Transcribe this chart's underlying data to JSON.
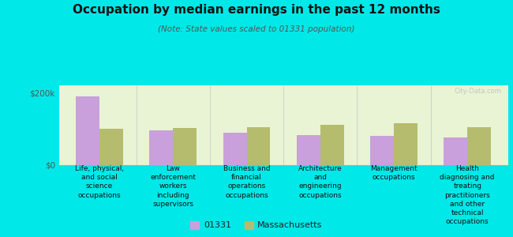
{
  "title": "Occupation by median earnings in the past 12 months",
  "subtitle": "(Note: State values scaled to 01331 population)",
  "categories": [
    "Life, physical,\nand social\nscience\noccupations",
    "Law\nenforcement\nworkers\nincluding\nsupervisors",
    "Business and\nfinancial\noperations\noccupations",
    "Architecture\nand\nengineering\noccupations",
    "Management\noccupations",
    "Health\ndiagnosing and\ntreating\npractitioners\nand other\ntechnical\noccupations"
  ],
  "values_01331": [
    190000,
    95000,
    88000,
    82000,
    80000,
    76000
  ],
  "values_mass": [
    100000,
    102000,
    103000,
    110000,
    115000,
    105000
  ],
  "color_01331": "#c9a0dc",
  "color_mass": "#b5bc6e",
  "ylim": [
    0,
    220000
  ],
  "yticks": [
    0,
    200000
  ],
  "ytick_labels": [
    "$0",
    "$200k"
  ],
  "background_color": "#e8f4d4",
  "outer_background": "#00e8e8",
  "legend_01331": "01331",
  "legend_mass": "Massachusetts",
  "watermark": "City-Data.com"
}
